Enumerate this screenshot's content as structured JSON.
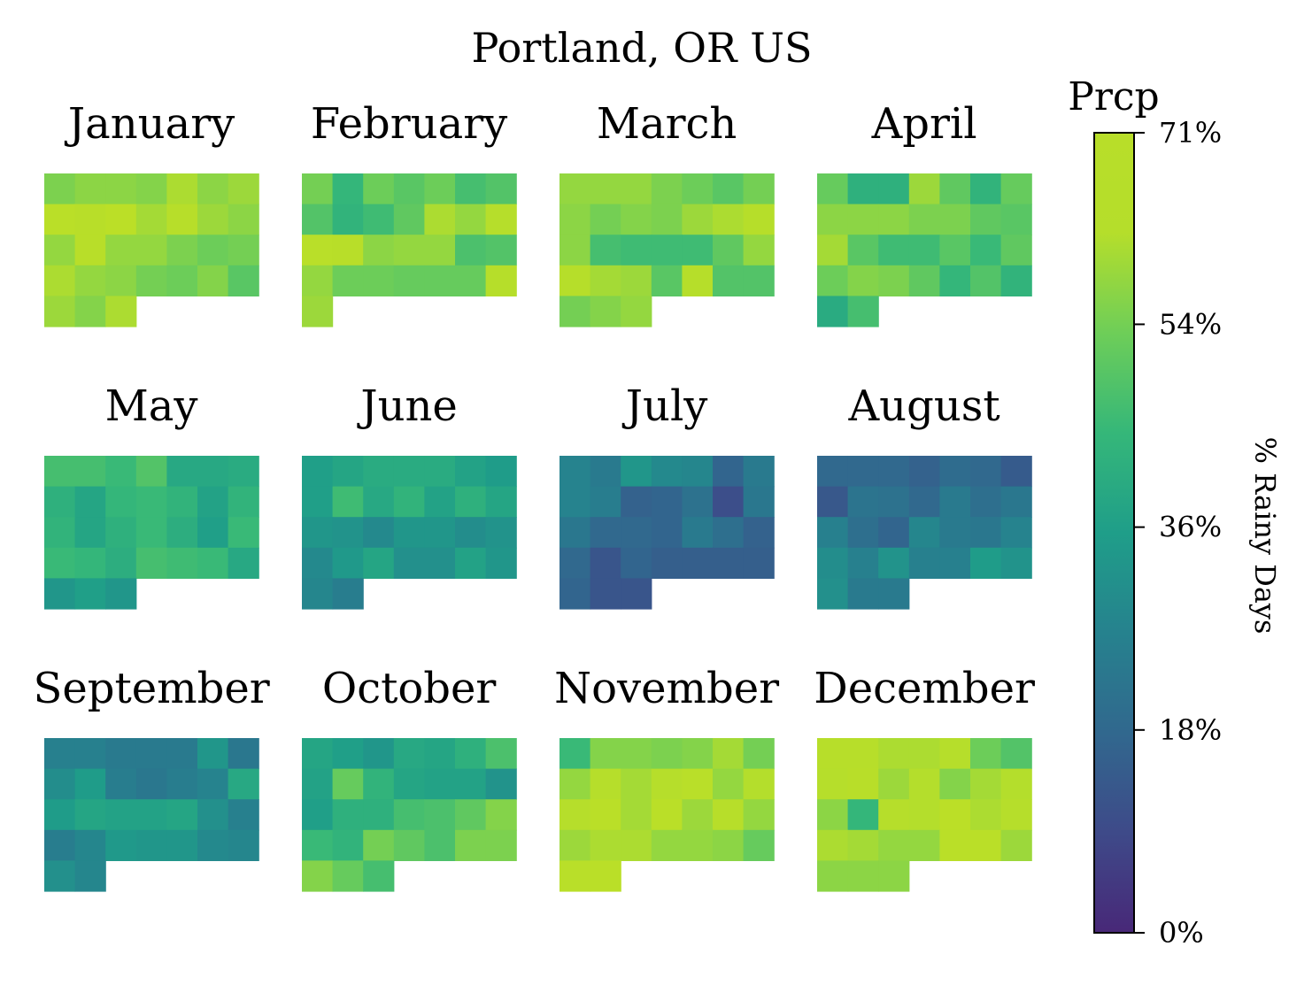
{
  "chart_data": {
    "type": "heatmap",
    "title": "Portland, OR US",
    "colorbar": {
      "title": "Prcp",
      "label": "% Rainy Days",
      "min": 0,
      "max": 71,
      "ticks": [
        0,
        18,
        36,
        54,
        71
      ],
      "tick_labels": [
        "0%",
        "18%",
        "36%",
        "54%",
        "71%"
      ],
      "colormap": "viridis"
    },
    "months": [
      {
        "name": "January",
        "values": [
          [
            55,
            57,
            57,
            56,
            61,
            57,
            59
          ],
          [
            69,
            66,
            70,
            60,
            65,
            59,
            57
          ],
          [
            58,
            66,
            58,
            58,
            55,
            53,
            54
          ],
          [
            61,
            58,
            57,
            54,
            53,
            56,
            50
          ],
          [
            59,
            56,
            61
          ]
        ]
      },
      {
        "name": "February",
        "values": [
          [
            54,
            44,
            53,
            50,
            53,
            47,
            49
          ],
          [
            49,
            43,
            46,
            51,
            61,
            58,
            63
          ],
          [
            67,
            66,
            57,
            58,
            58,
            48,
            49
          ],
          [
            58,
            53,
            53,
            52,
            52,
            52,
            64
          ],
          [
            59
          ]
        ]
      },
      {
        "name": "March",
        "values": [
          [
            58,
            58,
            58,
            55,
            53,
            50,
            54
          ],
          [
            57,
            54,
            56,
            55,
            59,
            61,
            64
          ],
          [
            57,
            47,
            46,
            46,
            46,
            51,
            58
          ],
          [
            64,
            60,
            59,
            50,
            64,
            49,
            49
          ],
          [
            54,
            56,
            58
          ]
        ]
      },
      {
        "name": "April",
        "values": [
          [
            52,
            42,
            42,
            59,
            51,
            43,
            52
          ],
          [
            57,
            57,
            57,
            55,
            55,
            51,
            50
          ],
          [
            60,
            50,
            46,
            46,
            50,
            45,
            51
          ],
          [
            53,
            56,
            55,
            51,
            44,
            49,
            43
          ],
          [
            40,
            47
          ]
        ]
      },
      {
        "name": "May",
        "values": [
          [
            47,
            47,
            45,
            49,
            39,
            39,
            40
          ],
          [
            42,
            38,
            44,
            45,
            43,
            37,
            43
          ],
          [
            43,
            38,
            42,
            45,
            41,
            36,
            45
          ],
          [
            45,
            44,
            41,
            47,
            46,
            45,
            39
          ],
          [
            33,
            36,
            33
          ]
        ]
      },
      {
        "name": "June",
        "values": [
          [
            36,
            38,
            40,
            40,
            40,
            37,
            35
          ],
          [
            36,
            46,
            39,
            43,
            37,
            42,
            38
          ],
          [
            33,
            32,
            29,
            33,
            33,
            30,
            32
          ],
          [
            29,
            34,
            38,
            31,
            31,
            37,
            33
          ],
          [
            28,
            25
          ]
        ]
      },
      {
        "name": "July",
        "values": [
          [
            27,
            24,
            33,
            29,
            28,
            17,
            24
          ],
          [
            27,
            25,
            16,
            17,
            21,
            10,
            23
          ],
          [
            23,
            18,
            18,
            17,
            24,
            20,
            16
          ],
          [
            18,
            12,
            17,
            15,
            15,
            15,
            15
          ],
          [
            17,
            12,
            12
          ]
        ]
      },
      {
        "name": "August",
        "values": [
          [
            18,
            18,
            18,
            16,
            19,
            18,
            14
          ],
          [
            13,
            22,
            21,
            18,
            24,
            20,
            23
          ],
          [
            26,
            20,
            17,
            28,
            24,
            23,
            27
          ],
          [
            30,
            26,
            32,
            26,
            26,
            35,
            32
          ],
          [
            31,
            24,
            24
          ]
        ]
      },
      {
        "name": "September",
        "values": [
          [
            26,
            26,
            24,
            24,
            24,
            33,
            23
          ],
          [
            30,
            35,
            25,
            23,
            25,
            27,
            39
          ],
          [
            35,
            38,
            37,
            37,
            38,
            31,
            26
          ],
          [
            25,
            28,
            34,
            33,
            33,
            29,
            28
          ],
          [
            31,
            28
          ]
        ]
      },
      {
        "name": "October",
        "values": [
          [
            38,
            36,
            33,
            39,
            38,
            42,
            48
          ],
          [
            37,
            52,
            43,
            38,
            37,
            37,
            32
          ],
          [
            36,
            42,
            42,
            47,
            48,
            51,
            56
          ],
          [
            45,
            43,
            54,
            51,
            48,
            55,
            55
          ],
          [
            56,
            52,
            47
          ]
        ]
      },
      {
        "name": "November",
        "values": [
          [
            45,
            56,
            56,
            55,
            56,
            60,
            54
          ],
          [
            58,
            63,
            60,
            63,
            67,
            58,
            62
          ],
          [
            63,
            68,
            60,
            69,
            59,
            65,
            58
          ],
          [
            59,
            61,
            61,
            58,
            58,
            57,
            52
          ],
          [
            67,
            68
          ]
        ]
      },
      {
        "name": "December",
        "values": [
          [
            65,
            65,
            61,
            61,
            63,
            53,
            49
          ],
          [
            63,
            66,
            59,
            62,
            56,
            60,
            62
          ],
          [
            57,
            44,
            63,
            62,
            70,
            61,
            63
          ],
          [
            61,
            60,
            58,
            58,
            68,
            68,
            59
          ],
          [
            57,
            57,
            57
          ]
        ]
      }
    ]
  }
}
